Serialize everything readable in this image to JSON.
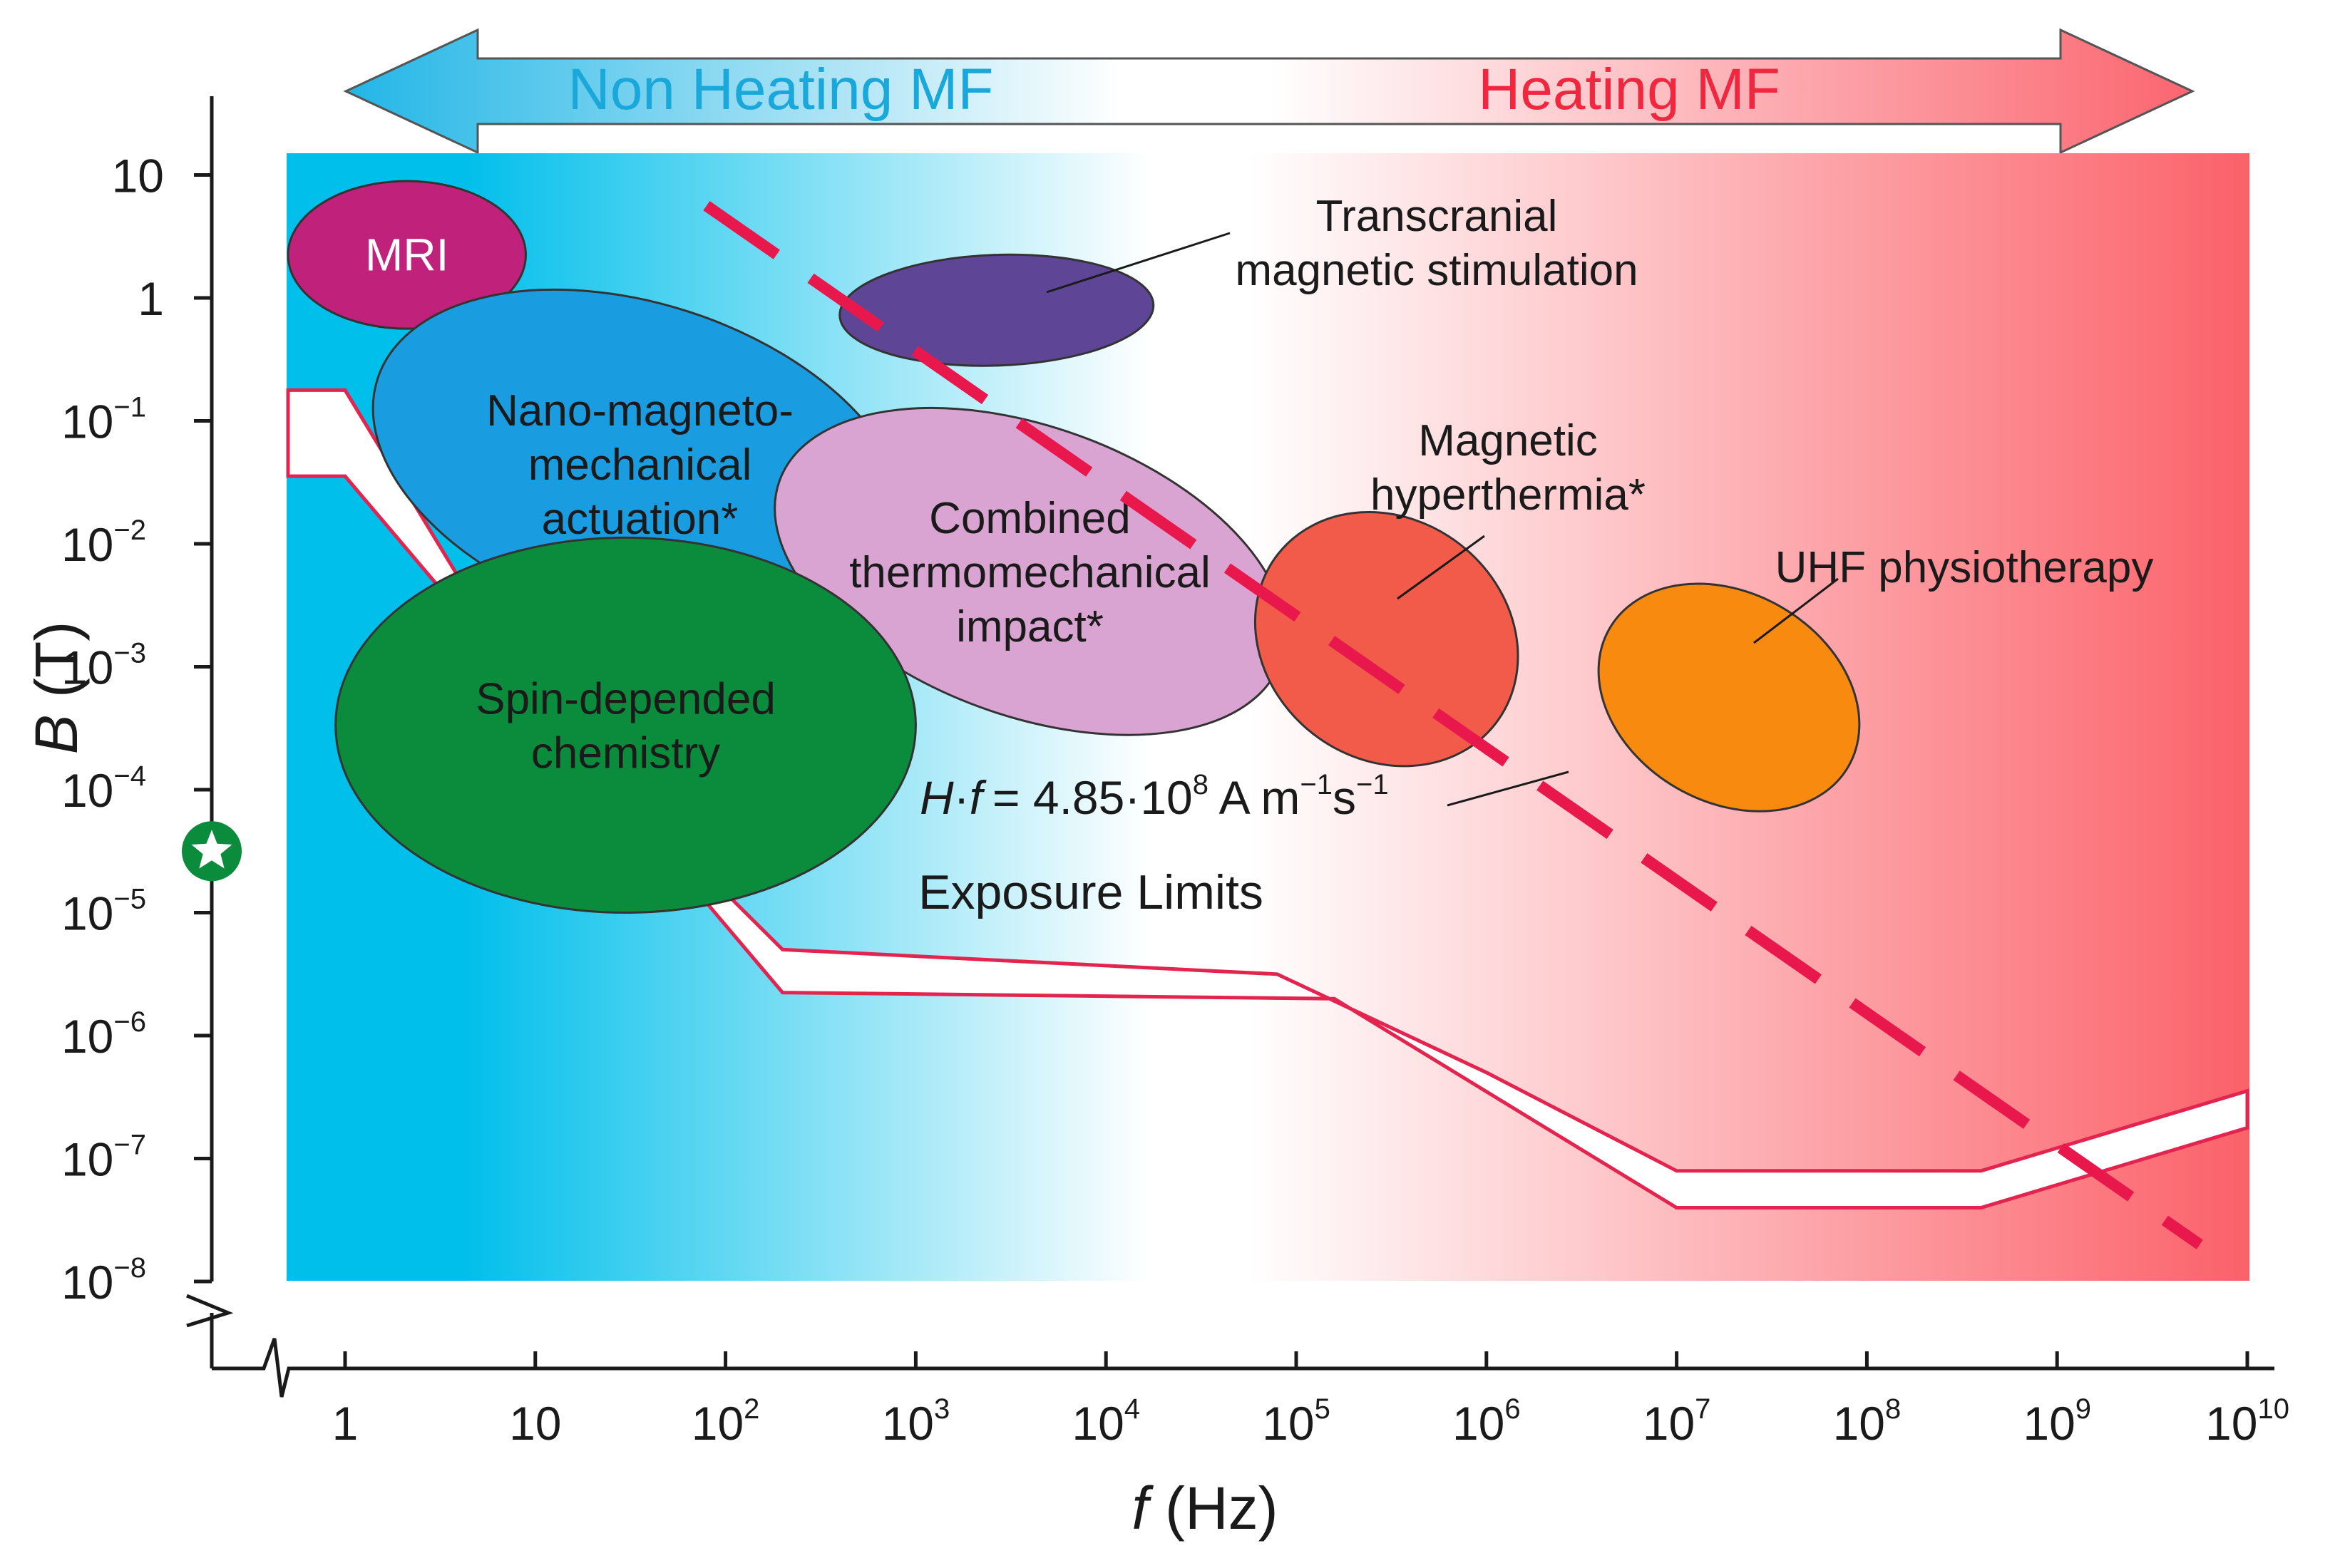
{
  "chart_data": {
    "type": "scatter",
    "title": "",
    "xlabel": {
      "italic": "f",
      "rest": " (Hz)"
    },
    "ylabel": {
      "italic": "B",
      "rest": " (T)"
    },
    "x_scale": "log10",
    "y_scale": "log10",
    "xlim_exp": [
      -0.3,
      10
    ],
    "ylim_exp": [
      -8,
      1.1
    ],
    "x_ticks": [
      {
        "exp": 0,
        "base": "1",
        "sup": ""
      },
      {
        "exp": 1,
        "base": "10",
        "sup": ""
      },
      {
        "exp": 2,
        "base": "10",
        "sup": "2"
      },
      {
        "exp": 3,
        "base": "10",
        "sup": "3"
      },
      {
        "exp": 4,
        "base": "10",
        "sup": "4"
      },
      {
        "exp": 5,
        "base": "10",
        "sup": "5"
      },
      {
        "exp": 6,
        "base": "10",
        "sup": "6"
      },
      {
        "exp": 7,
        "base": "10",
        "sup": "7"
      },
      {
        "exp": 8,
        "base": "10",
        "sup": "8"
      },
      {
        "exp": 9,
        "base": "10",
        "sup": "9"
      },
      {
        "exp": 10,
        "base": "10",
        "sup": "10"
      }
    ],
    "y_ticks": [
      {
        "exp": 1,
        "base": "10",
        "sup": ""
      },
      {
        "exp": 0,
        "base": "1",
        "sup": ""
      },
      {
        "exp": -1,
        "base": "10",
        "sup": "−1"
      },
      {
        "exp": -2,
        "base": "10",
        "sup": "−2"
      },
      {
        "exp": -3,
        "base": "10",
        "sup": "−3"
      },
      {
        "exp": -4,
        "base": "10",
        "sup": "−4"
      },
      {
        "exp": -5,
        "base": "10",
        "sup": "−5"
      },
      {
        "exp": -6,
        "base": "10",
        "sup": "−6"
      },
      {
        "exp": -7,
        "base": "10",
        "sup": "−7"
      },
      {
        "exp": -8,
        "base": "10",
        "sup": "−8"
      }
    ],
    "regions_header": {
      "left": {
        "label": "Non Heating MF",
        "color": "#1aa7d9"
      },
      "right": {
        "label": "Heating MF",
        "color": "#f0283f"
      }
    },
    "background_gradient": {
      "left": "#00bfeb",
      "middle": "#ffffff",
      "right": "#fb6169"
    },
    "regions": [
      {
        "name": "MRI",
        "lines": [
          "MRI"
        ],
        "log_f": [
          -0.3,
          0.95
        ],
        "log_b": [
          -0.25,
          0.95
        ],
        "color": "#c0217b",
        "text_color": "#ffffff"
      },
      {
        "name": "Transcranial magnetic stimulation",
        "lines": [
          "Transcranial",
          "magnetic stimulation"
        ],
        "log_f": [
          2.6,
          4.25
        ],
        "log_b": [
          -0.55,
          0.35
        ],
        "color": "#5e4596",
        "text_color": "#1a1a1a",
        "callout": true
      },
      {
        "name": "Nano-magneto-mechanical actuation*",
        "lines": [
          "Nano-magneto-",
          "mechanical",
          "actuation*"
        ],
        "log_f": [
          0.1,
          3.0
        ],
        "log_b": [
          -2.65,
          -0.05
        ],
        "color": "#1a9ce0",
        "text_color": "#1a1a1a"
      },
      {
        "name": "Combined thermomechanical impact*",
        "lines": [
          "Combined",
          "thermomechanical",
          "impact*"
        ],
        "log_f": [
          2.2,
          5.0
        ],
        "log_b": [
          -3.4,
          -1.05
        ],
        "color": "#d9a4d2",
        "text_color": "#1a1a1a"
      },
      {
        "name": "Spin-depended chemistry",
        "lines": [
          "Spin-depended",
          "chemistry"
        ],
        "log_f": [
          -0.05,
          3.0
        ],
        "log_b": [
          -5.0,
          -1.95
        ],
        "color": "#0b8b3c",
        "text_color": "#1a1a1a"
      },
      {
        "name": "Magnetic hyperthermia*",
        "lines": [
          "Magnetic",
          "hyperthermia*"
        ],
        "log_f": [
          4.75,
          6.2
        ],
        "log_b": [
          -3.75,
          -1.8
        ],
        "color": "#f25b4a",
        "text_color": "#1a1a1a",
        "callout": true
      },
      {
        "name": "UHF physiotherapy",
        "lines": [
          "UHF physiotherapy"
        ],
        "log_f": [
          6.55,
          8.0
        ],
        "log_b": [
          -4.1,
          -2.4
        ],
        "color": "#f88a0f",
        "text_color": "#1a1a1a",
        "callout": true
      }
    ],
    "exposure_limits": {
      "label": "Exposure Limits",
      "upper": [
        [
          -0.3,
          -0.75
        ],
        [
          0.0,
          -0.75
        ],
        [
          1.0,
          -3.3
        ],
        [
          2.3,
          -5.3
        ],
        [
          4.9,
          -5.5
        ],
        [
          6.0,
          -6.3
        ],
        [
          7.0,
          -7.1
        ],
        [
          8.6,
          -7.1
        ],
        [
          10.0,
          -6.45
        ]
      ],
      "lower": [
        [
          10.0,
          -6.75
        ],
        [
          8.6,
          -7.4
        ],
        [
          7.0,
          -7.4
        ],
        [
          5.2,
          -5.7
        ],
        [
          2.3,
          -5.65
        ],
        [
          0.0,
          -1.45
        ],
        [
          -0.3,
          -1.45
        ]
      ]
    },
    "threshold_line": {
      "label_italic_h": "H",
      "label_italic_f": "f",
      "label_value": "= 4.85·10",
      "label_exp": "8",
      "label_units_a": " A m",
      "label_units_sup1": "−1",
      "label_units_s": "s",
      "label_units_sup2": "−1",
      "start": [
        1.9,
        0.75
      ],
      "end": [
        9.75,
        -7.7
      ],
      "color": "#e8184d"
    },
    "marker": {
      "name": "star",
      "log_b": -4.5,
      "color": "#0b8b3c"
    }
  }
}
